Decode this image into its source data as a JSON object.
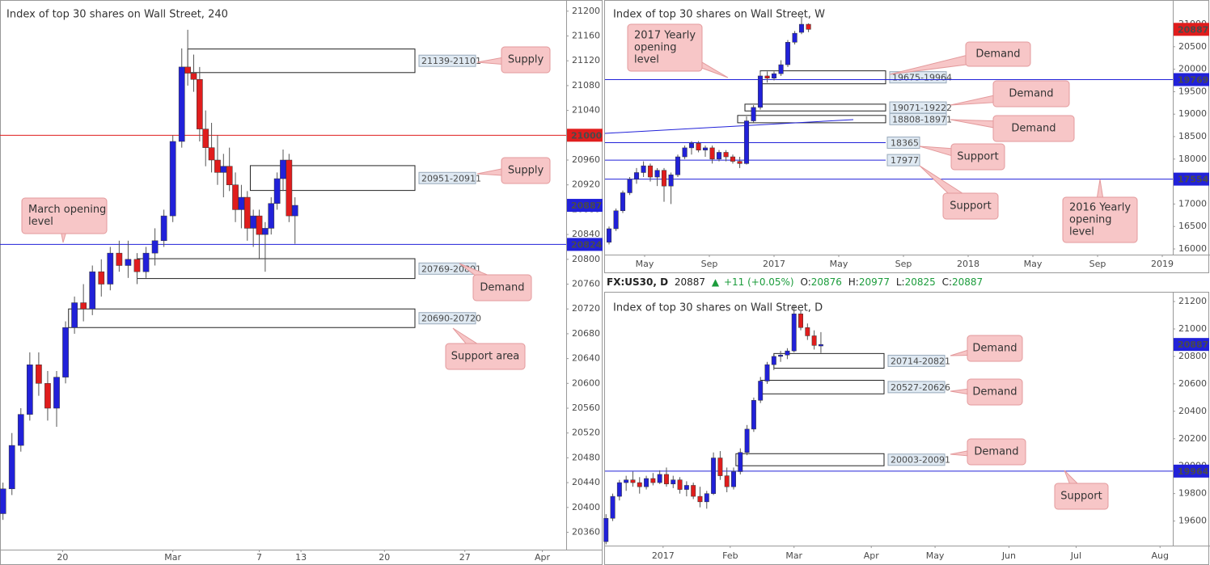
{
  "ticker": {
    "symbol": "FX:US30, D",
    "last": 20887,
    "arrow": "▲",
    "change": "+11 (+0.05%)",
    "open_label": "O:",
    "open": 20876,
    "high_label": "H:",
    "high": 20977,
    "low_label": "L:",
    "low": 20825,
    "close_label": "C:",
    "close": 20887
  },
  "chart_data": [
    {
      "type": "candlestick",
      "title": "Index of top 30 shares on Wall Street, 240",
      "up_color": "#2121d9",
      "down_color": "#e01d1d",
      "xlim": [
        0,
        190
      ],
      "ylim": [
        20332,
        21218
      ],
      "xticks": [
        {
          "value": 21,
          "label": "20"
        },
        {
          "value": 58,
          "label": "Mar"
        },
        {
          "value": 87,
          "label": "7"
        },
        {
          "value": 101,
          "label": "13"
        },
        {
          "value": 129,
          "label": "20"
        },
        {
          "value": 156,
          "label": "27"
        },
        {
          "value": 182,
          "label": "Apr"
        }
      ],
      "yticks": [
        20360,
        20400,
        20440,
        20480,
        20520,
        20560,
        20600,
        20640,
        20680,
        20720,
        20760,
        20800,
        20840,
        20880,
        20920,
        20960,
        21000,
        21040,
        21080,
        21120,
        21160,
        21200
      ],
      "x": [
        1,
        4,
        7,
        10,
        13,
        16,
        19,
        22,
        25,
        28,
        31,
        34,
        37,
        40,
        43,
        46,
        49,
        52,
        55,
        58,
        61,
        63,
        65,
        67,
        69,
        71,
        73,
        75,
        77,
        79,
        81,
        83,
        85,
        87,
        89,
        91,
        93,
        95,
        97,
        99
      ],
      "ohlc": [
        [
          20390,
          20440,
          20380,
          20430
        ],
        [
          20430,
          20520,
          20420,
          20500
        ],
        [
          20500,
          20560,
          20490,
          20550
        ],
        [
          20550,
          20650,
          20540,
          20630
        ],
        [
          20630,
          20650,
          20580,
          20600
        ],
        [
          20600,
          20620,
          20540,
          20560
        ],
        [
          20560,
          20620,
          20530,
          20610
        ],
        [
          20610,
          20700,
          20600,
          20690
        ],
        [
          20690,
          20740,
          20680,
          20730
        ],
        [
          20730,
          20760,
          20700,
          20720
        ],
        [
          20720,
          20790,
          20710,
          20780
        ],
        [
          20780,
          20800,
          20740,
          20760
        ],
        [
          20760,
          20820,
          20750,
          20810
        ],
        [
          20810,
          20830,
          20780,
          20790
        ],
        [
          20790,
          20830,
          20770,
          20800
        ],
        [
          20800,
          20810,
          20760,
          20780
        ],
        [
          20780,
          20820,
          20770,
          20810
        ],
        [
          20810,
          20850,
          20790,
          20830
        ],
        [
          20830,
          20880,
          20820,
          20870
        ],
        [
          20870,
          21000,
          20860,
          20990
        ],
        [
          20990,
          21140,
          20980,
          21110
        ],
        [
          21110,
          21170,
          21080,
          21100
        ],
        [
          21100,
          21130,
          21070,
          21090
        ],
        [
          21090,
          21110,
          20990,
          21010
        ],
        [
          21010,
          21040,
          20950,
          20980
        ],
        [
          20980,
          21020,
          20940,
          20960
        ],
        [
          20960,
          21000,
          20920,
          20940
        ],
        [
          20940,
          20970,
          20900,
          20950
        ],
        [
          20950,
          20980,
          20910,
          20920
        ],
        [
          20920,
          20940,
          20860,
          20880
        ],
        [
          20880,
          20920,
          20850,
          20900
        ],
        [
          20900,
          20910,
          20830,
          20850
        ],
        [
          20850,
          20880,
          20820,
          20870
        ],
        [
          20870,
          20880,
          20800,
          20840
        ],
        [
          20840,
          20860,
          20780,
          20850
        ],
        [
          20850,
          20900,
          20840,
          20890
        ],
        [
          20890,
          20940,
          20880,
          20930
        ],
        [
          20930,
          20977,
          20910,
          20960
        ],
        [
          20960,
          20970,
          20860,
          20870
        ],
        [
          20870,
          20900,
          20825,
          20887
        ]
      ],
      "hlines": [
        {
          "value": 21000,
          "color": "#e01d1d",
          "tag": "axis"
        },
        {
          "value": 20824,
          "color": "#2121d9",
          "tag": "axis"
        }
      ],
      "last": {
        "value": 20887,
        "color": "#2121d9"
      },
      "zones": [
        {
          "label": "21139-21101",
          "low": 21101,
          "high": 21139,
          "x0": 63
        },
        {
          "label": "20951-20911",
          "low": 20911,
          "high": 20951,
          "x0": 84
        },
        {
          "label": "20769-20801",
          "low": 20769,
          "high": 20801,
          "x0": 46
        },
        {
          "label": "20690-20720",
          "low": 20690,
          "high": 20720,
          "x0": 23
        }
      ],
      "callouts": [
        {
          "lines": [
            "Supply"
          ]
        },
        {
          "lines": [
            "Supply"
          ]
        },
        {
          "lines": [
            "Demand"
          ]
        },
        {
          "lines": [
            "Support area"
          ]
        },
        {
          "lines": [
            "March opening",
            "level"
          ]
        }
      ]
    },
    {
      "type": "candlestick",
      "title": "Index of top 30 shares on Wall Street, W",
      "up_color": "#2121d9",
      "down_color": "#e01d1d",
      "xlim": [
        1.55,
        36.65
      ],
      "ylim": [
        15874,
        21540
      ],
      "xticks": [
        {
          "value": 4,
          "label": "May"
        },
        {
          "value": 8,
          "label": "Sep"
        },
        {
          "value": 12,
          "label": "2017"
        },
        {
          "value": 16,
          "label": "May"
        },
        {
          "value": 20,
          "label": "Sep"
        },
        {
          "value": 24,
          "label": "2018"
        },
        {
          "value": 28,
          "label": "May"
        },
        {
          "value": 32,
          "label": "Sep"
        },
        {
          "value": 36,
          "label": "2019"
        }
      ],
      "yticks": [
        16000,
        16500,
        17000,
        17500,
        18000,
        18500,
        19000,
        19500,
        20000,
        20500,
        21000
      ],
      "x": [
        1.8,
        2.23,
        2.65,
        3.08,
        3.5,
        3.93,
        4.35,
        4.78,
        5.2,
        5.63,
        6.05,
        6.48,
        6.9,
        7.33,
        7.75,
        8.18,
        8.6,
        9.03,
        9.45,
        9.88,
        10.3,
        10.73,
        11.15,
        11.58,
        12.0,
        12.43,
        12.85,
        13.28,
        13.7,
        14.13
      ],
      "ohlc": [
        [
          16150,
          16500,
          16100,
          16450
        ],
        [
          16450,
          16900,
          16400,
          16850
        ],
        [
          16850,
          17300,
          16800,
          17250
        ],
        [
          17250,
          17600,
          17200,
          17550
        ],
        [
          17550,
          17800,
          17450,
          17700
        ],
        [
          17700,
          17950,
          17600,
          17850
        ],
        [
          17850,
          17900,
          17500,
          17600
        ],
        [
          17600,
          17800,
          17400,
          17750
        ],
        [
          17750,
          17800,
          17050,
          17400
        ],
        [
          17400,
          17700,
          17000,
          17650
        ],
        [
          17650,
          18100,
          17600,
          18050
        ],
        [
          18050,
          18300,
          18000,
          18250
        ],
        [
          18250,
          18400,
          18100,
          18350
        ],
        [
          18350,
          18400,
          18150,
          18200
        ],
        [
          18200,
          18300,
          18050,
          18250
        ],
        [
          18250,
          18300,
          17900,
          18000
        ],
        [
          18000,
          18200,
          17950,
          18150
        ],
        [
          18150,
          18200,
          17950,
          18050
        ],
        [
          18050,
          18100,
          17900,
          17950
        ],
        [
          17950,
          18050,
          17800,
          17900
        ],
        [
          17900,
          18950,
          17880,
          18850
        ],
        [
          18850,
          19200,
          18800,
          19150
        ],
        [
          19150,
          19950,
          19100,
          19850
        ],
        [
          19850,
          19950,
          19700,
          19800
        ],
        [
          19800,
          19950,
          19750,
          19900
        ],
        [
          19900,
          20200,
          19850,
          20100
        ],
        [
          20100,
          20650,
          20050,
          20600
        ],
        [
          20600,
          20850,
          20550,
          20800
        ],
        [
          20820,
          21170,
          20780,
          21000
        ],
        [
          21000,
          21020,
          20825,
          20887
        ]
      ],
      "hlines": [
        {
          "value": 19769,
          "color": "#2121d9",
          "tag": "axis"
        },
        {
          "value": 17554,
          "color": "#2121d9",
          "tag": "axis"
        },
        {
          "value": 18365,
          "color": "#2121d9",
          "tag": "inline"
        },
        {
          "value": 17977,
          "color": "#2121d9",
          "tag": "inline"
        }
      ],
      "trendline": {
        "x": [
          1.55,
          16.9
        ],
        "y": [
          18572,
          18878
        ],
        "color": "#2121d9"
      },
      "last": {
        "value": 20887,
        "color": "#e01d1d"
      },
      "zones": [
        {
          "label": "19675-19964",
          "low": 19675,
          "high": 19964,
          "x0": 11.15
        },
        {
          "label": "19071-19222",
          "low": 19071,
          "high": 19222,
          "x0": 10.2
        },
        {
          "label": "18808-18971",
          "low": 18808,
          "high": 18971,
          "x0": 9.75
        }
      ],
      "callouts": [
        {
          "lines": [
            "2017 Yearly",
            "opening",
            "level"
          ]
        },
        {
          "lines": [
            "Demand"
          ]
        },
        {
          "lines": [
            "Demand"
          ]
        },
        {
          "lines": [
            "Demand"
          ]
        },
        {
          "lines": [
            "Support"
          ]
        },
        {
          "lines": [
            "Support"
          ]
        },
        {
          "lines": [
            "2016 Yearly",
            "opening",
            "level"
          ]
        }
      ]
    },
    {
      "type": "candlestick",
      "title": "Index of top 30 shares on Wall Street, D",
      "up_color": "#2121d9",
      "down_color": "#e01d1d",
      "xlim": [
        -17.3,
        151.8
      ],
      "ylim": [
        19421,
        21265
      ],
      "xticks": [
        {
          "value": 0,
          "label": "2017"
        },
        {
          "value": 20,
          "label": "Feb"
        },
        {
          "value": 39,
          "label": "Mar"
        },
        {
          "value": 62,
          "label": "Apr"
        },
        {
          "value": 81,
          "label": "May"
        },
        {
          "value": 103,
          "label": "Jun"
        },
        {
          "value": 123,
          "label": "Jul"
        },
        {
          "value": 148,
          "label": "Aug"
        }
      ],
      "yticks": [
        19600,
        19800,
        20000,
        20200,
        20400,
        20600,
        20800,
        21000,
        21200
      ],
      "x": [
        -17,
        -15,
        -13,
        -11,
        -9,
        -7,
        -5,
        -3,
        -1,
        1,
        3,
        5,
        7,
        9,
        11,
        13,
        15,
        17,
        19,
        21,
        23,
        25,
        27,
        29,
        31,
        33,
        35,
        37,
        39,
        41,
        43,
        45,
        47
      ],
      "ohlc": [
        [
          19450,
          19650,
          19430,
          19620
        ],
        [
          19620,
          19800,
          19600,
          19780
        ],
        [
          19780,
          19900,
          19750,
          19880
        ],
        [
          19880,
          19930,
          19820,
          19900
        ],
        [
          19900,
          19960,
          19850,
          19880
        ],
        [
          19880,
          19920,
          19800,
          19850
        ],
        [
          19850,
          19930,
          19830,
          19910
        ],
        [
          19910,
          19950,
          19860,
          19880
        ],
        [
          19880,
          19970,
          19870,
          19940
        ],
        [
          19940,
          19990,
          19850,
          19870
        ],
        [
          19870,
          19930,
          19840,
          19900
        ],
        [
          19900,
          19920,
          19800,
          19830
        ],
        [
          19830,
          19890,
          19780,
          19860
        ],
        [
          19860,
          19880,
          19760,
          19780
        ],
        [
          19780,
          19850,
          19700,
          19740
        ],
        [
          19740,
          19820,
          19690,
          19800
        ],
        [
          19800,
          20100,
          19790,
          20060
        ],
        [
          20060,
          20110,
          19900,
          19930
        ],
        [
          19930,
          19990,
          19810,
          19850
        ],
        [
          19850,
          19990,
          19830,
          19960
        ],
        [
          19960,
          20130,
          19940,
          20100
        ],
        [
          20100,
          20300,
          20080,
          20270
        ],
        [
          20270,
          20500,
          20250,
          20480
        ],
        [
          20480,
          20650,
          20460,
          20620
        ],
        [
          20620,
          20760,
          20600,
          20740
        ],
        [
          20740,
          20820,
          20700,
          20800
        ],
        [
          20800,
          20840,
          20760,
          20810
        ],
        [
          20810,
          20860,
          20780,
          20840
        ],
        [
          20840,
          21170,
          20830,
          21110
        ],
        [
          21110,
          21130,
          20990,
          21010
        ],
        [
          21010,
          21040,
          20920,
          20950
        ],
        [
          20950,
          20990,
          20850,
          20880
        ],
        [
          20876,
          20977,
          20825,
          20887
        ]
      ],
      "hlines": [
        {
          "value": 19964,
          "color": "#2121d9",
          "tag": "axis"
        }
      ],
      "last": {
        "value": 20887,
        "color": "#2121d9"
      },
      "zones": [
        {
          "label": "20714-20821",
          "low": 20714,
          "high": 20821,
          "x0": 33
        },
        {
          "label": "20527-20626",
          "low": 20527,
          "high": 20626,
          "x0": 29
        },
        {
          "label": "20003-20091",
          "low": 20003,
          "high": 20091,
          "x0": 21.7
        }
      ],
      "callouts": [
        {
          "lines": [
            "Demand"
          ]
        },
        {
          "lines": [
            "Demand"
          ]
        },
        {
          "lines": [
            "Demand"
          ]
        },
        {
          "lines": [
            "Support"
          ]
        }
      ]
    }
  ]
}
